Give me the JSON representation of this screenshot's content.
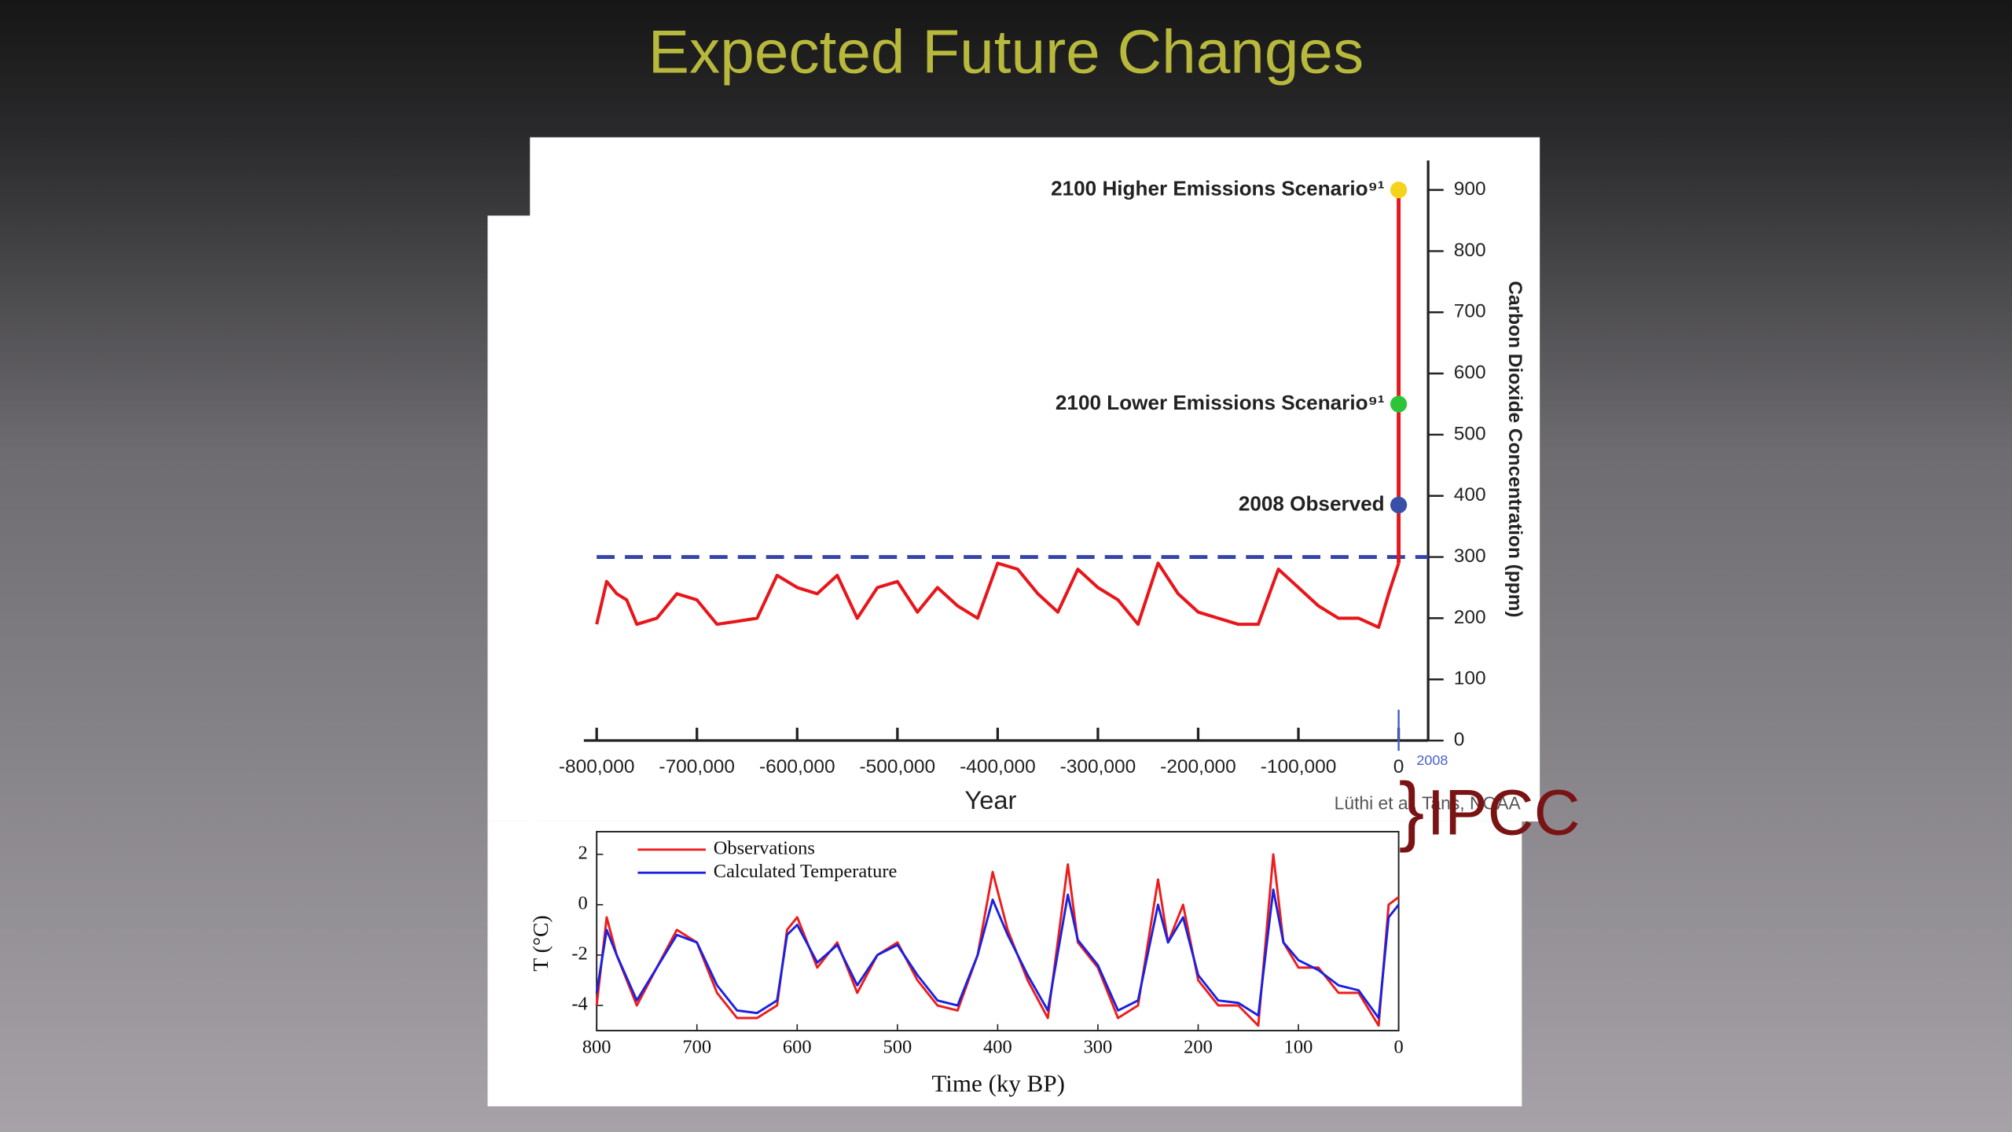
{
  "title": "Expected Future Changes",
  "source": "Lüthi et al. Tans, NOAA",
  "credit": "IPCC",
  "chart_data": [
    {
      "type": "line",
      "xlabel": "Year",
      "ylabel": "Carbon Dioxide Concentration (ppm)",
      "x": [
        -800000,
        -790000,
        -780000,
        -770000,
        -760000,
        -740000,
        -720000,
        -700000,
        -680000,
        -660000,
        -640000,
        -620000,
        -600000,
        -580000,
        -560000,
        -540000,
        -520000,
        -500000,
        -480000,
        -460000,
        -440000,
        -420000,
        -400000,
        -380000,
        -360000,
        -340000,
        -320000,
        -300000,
        -280000,
        -260000,
        -240000,
        -220000,
        -200000,
        -180000,
        -160000,
        -140000,
        -120000,
        -100000,
        -80000,
        -60000,
        -40000,
        -20000,
        -10000,
        0
      ],
      "series": [
        {
          "color": "#e8161b",
          "values": [
            190,
            260,
            240,
            230,
            190,
            200,
            240,
            230,
            190,
            195,
            200,
            270,
            250,
            240,
            270,
            200,
            250,
            260,
            210,
            250,
            220,
            200,
            290,
            280,
            240,
            210,
            280,
            250,
            230,
            190,
            290,
            240,
            210,
            200,
            190,
            190,
            280,
            250,
            220,
            200,
            200,
            185,
            240,
            290
          ]
        }
      ],
      "points": [
        {
          "label": "2100 Higher Emissions Scenario⁹¹",
          "value": 900,
          "color": "#f5d31a"
        },
        {
          "label": "2100 Lower Emissions Scenario⁹¹",
          "value": 550,
          "color": "#2ec43a"
        },
        {
          "label": "2008 Observed",
          "value": 385,
          "color": "#3a4fa8"
        }
      ],
      "reference_line": {
        "value": 300,
        "color": "#3344aa"
      },
      "marker_label": "2008",
      "xlim": [
        -800000,
        0
      ],
      "xticks": [
        {
          "value": -800000,
          "label": "-800,000"
        },
        {
          "value": -700000,
          "label": "-700,000"
        },
        {
          "value": -600000,
          "label": "-600,000"
        },
        {
          "value": -500000,
          "label": "-500,000"
        },
        {
          "value": -400000,
          "label": "-400,000"
        },
        {
          "value": -300000,
          "label": "-300,000"
        },
        {
          "value": -200000,
          "label": "-200,000"
        },
        {
          "value": -100000,
          "label": "-100,000"
        },
        0
      ],
      "ylim": [
        0,
        900
      ],
      "yticks": [
        0,
        100,
        200,
        300,
        400,
        500,
        600,
        700,
        800,
        900
      ]
    },
    {
      "type": "line",
      "xlabel": "Time (ky BP)",
      "ylabel": "T (°C)",
      "x": [
        800,
        790,
        780,
        760,
        740,
        720,
        700,
        680,
        660,
        640,
        620,
        610,
        600,
        580,
        560,
        540,
        520,
        500,
        480,
        460,
        440,
        420,
        405,
        390,
        370,
        350,
        330,
        320,
        300,
        280,
        260,
        240,
        230,
        215,
        200,
        180,
        160,
        140,
        125,
        115,
        100,
        80,
        60,
        40,
        20,
        10,
        0
      ],
      "series": [
        {
          "name": "Observations",
          "color": "#ee1c1c",
          "values": [
            -4,
            -0.5,
            -2,
            -4,
            -2.5,
            -1,
            -1.5,
            -3.5,
            -4.5,
            -4.5,
            -4,
            -1,
            -0.5,
            -2.5,
            -1.5,
            -3.5,
            -2,
            -1.5,
            -3,
            -4,
            -4.2,
            -2,
            1.3,
            -1,
            -3,
            -4.5,
            1.6,
            -1.5,
            -2.5,
            -4.5,
            -4,
            1,
            -1.5,
            0,
            -3,
            -4,
            -4,
            -4.8,
            2,
            -1.5,
            -2.5,
            -2.5,
            -3.5,
            -3.5,
            -4.8,
            0,
            0.3
          ]
        },
        {
          "name": "Calculated Temperature",
          "color": "#1a22e0",
          "values": [
            -3.5,
            -1,
            -2,
            -3.8,
            -2.5,
            -1.2,
            -1.5,
            -3.2,
            -4.2,
            -4.3,
            -3.8,
            -1.2,
            -0.8,
            -2.3,
            -1.6,
            -3.2,
            -2,
            -1.6,
            -2.8,
            -3.8,
            -4,
            -2,
            0.2,
            -1.2,
            -2.8,
            -4.2,
            0.4,
            -1.4,
            -2.4,
            -4.2,
            -3.8,
            0,
            -1.5,
            -0.5,
            -2.8,
            -3.8,
            -3.9,
            -4.4,
            0.6,
            -1.5,
            -2.2,
            -2.6,
            -3.2,
            -3.4,
            -4.5,
            -0.5,
            0
          ]
        }
      ],
      "xlim": [
        800,
        0
      ],
      "xticks": [
        800,
        700,
        600,
        500,
        400,
        300,
        200,
        100,
        0
      ],
      "ylim": [
        -5,
        2.9
      ],
      "yticks": [
        -4,
        -2,
        0,
        2
      ]
    }
  ]
}
